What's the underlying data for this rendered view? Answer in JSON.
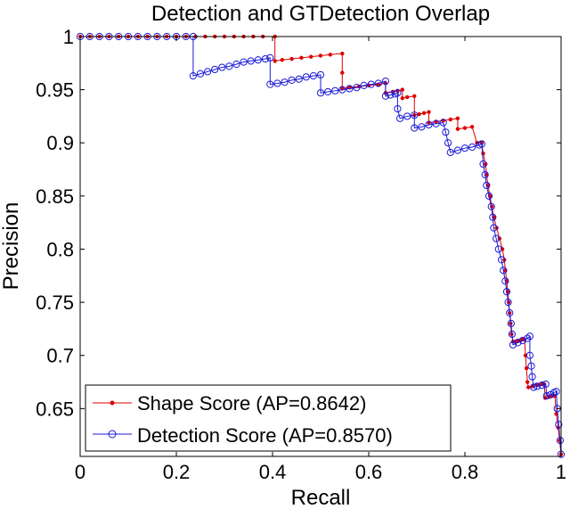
{
  "chart_data": {
    "type": "line",
    "title": "Detection and GTDetection Overlap",
    "xlabel": "Recall",
    "ylabel": "Precision",
    "xlim": [
      0,
      1
    ],
    "ylim": [
      0.605,
      1.0
    ],
    "xticks": [
      0,
      0.2,
      0.4,
      0.6,
      0.8,
      1
    ],
    "xtick_labels": [
      "0",
      "0.2",
      "0.4",
      "0.6",
      "0.8",
      "1"
    ],
    "yticks": [
      0.65,
      0.7,
      0.75,
      0.8,
      0.85,
      0.9,
      0.95,
      1
    ],
    "ytick_labels": [
      "0.65",
      "0.7",
      "0.75",
      "0.8",
      "0.85",
      "0.9",
      "0.95",
      "1"
    ],
    "grid": false,
    "legend_position": "bottom-left",
    "series": [
      {
        "name": "Shape Score (AP=0.8642)",
        "color": "#e00000",
        "marker": "dot",
        "points": [
          [
            0.0,
            1.0
          ],
          [
            0.02,
            1.0
          ],
          [
            0.04,
            1.0
          ],
          [
            0.06,
            1.0
          ],
          [
            0.08,
            1.0
          ],
          [
            0.1,
            1.0
          ],
          [
            0.12,
            1.0
          ],
          [
            0.14,
            1.0
          ],
          [
            0.16,
            1.0
          ],
          [
            0.18,
            1.0
          ],
          [
            0.2,
            1.0
          ],
          [
            0.22,
            1.0
          ],
          [
            0.24,
            1.0
          ],
          [
            0.26,
            1.0
          ],
          [
            0.28,
            1.0
          ],
          [
            0.3,
            1.0
          ],
          [
            0.32,
            1.0
          ],
          [
            0.34,
            1.0
          ],
          [
            0.36,
            1.0
          ],
          [
            0.38,
            1.0
          ],
          [
            0.405,
            1.0
          ],
          [
            0.405,
            0.977
          ],
          [
            0.42,
            0.978
          ],
          [
            0.44,
            0.979
          ],
          [
            0.46,
            0.98
          ],
          [
            0.48,
            0.981
          ],
          [
            0.5,
            0.982
          ],
          [
            0.52,
            0.983
          ],
          [
            0.545,
            0.984
          ],
          [
            0.545,
            0.966
          ],
          [
            0.545,
            0.951
          ],
          [
            0.56,
            0.952
          ],
          [
            0.58,
            0.953
          ],
          [
            0.6,
            0.954
          ],
          [
            0.62,
            0.955
          ],
          [
            0.635,
            0.956
          ],
          [
            0.635,
            0.947
          ],
          [
            0.65,
            0.948
          ],
          [
            0.66,
            0.949
          ],
          [
            0.67,
            0.95
          ],
          [
            0.67,
            0.942
          ],
          [
            0.68,
            0.943
          ],
          [
            0.695,
            0.944
          ],
          [
            0.695,
            0.926
          ],
          [
            0.705,
            0.927
          ],
          [
            0.715,
            0.928
          ],
          [
            0.725,
            0.929
          ],
          [
            0.725,
            0.919
          ],
          [
            0.74,
            0.92
          ],
          [
            0.755,
            0.921
          ],
          [
            0.77,
            0.922
          ],
          [
            0.785,
            0.923
          ],
          [
            0.785,
            0.913
          ],
          [
            0.8,
            0.914
          ],
          [
            0.815,
            0.915
          ],
          [
            0.825,
            0.9
          ],
          [
            0.835,
            0.9
          ],
          [
            0.838,
            0.89
          ],
          [
            0.843,
            0.88
          ],
          [
            0.845,
            0.87
          ],
          [
            0.848,
            0.86
          ],
          [
            0.852,
            0.85
          ],
          [
            0.856,
            0.84
          ],
          [
            0.86,
            0.83
          ],
          [
            0.866,
            0.82
          ],
          [
            0.872,
            0.81
          ],
          [
            0.878,
            0.8
          ],
          [
            0.882,
            0.79
          ],
          [
            0.884,
            0.78
          ],
          [
            0.887,
            0.77
          ],
          [
            0.889,
            0.76
          ],
          [
            0.891,
            0.75
          ],
          [
            0.893,
            0.74
          ],
          [
            0.895,
            0.73
          ],
          [
            0.897,
            0.72
          ],
          [
            0.9,
            0.713
          ],
          [
            0.905,
            0.713
          ],
          [
            0.91,
            0.714
          ],
          [
            0.915,
            0.714
          ],
          [
            0.92,
            0.715
          ],
          [
            0.924,
            0.715
          ],
          [
            0.926,
            0.7
          ],
          [
            0.928,
            0.688
          ],
          [
            0.93,
            0.675
          ],
          [
            0.932,
            0.67
          ],
          [
            0.94,
            0.671
          ],
          [
            0.95,
            0.672
          ],
          [
            0.96,
            0.673
          ],
          [
            0.965,
            0.673
          ],
          [
            0.967,
            0.66
          ],
          [
            0.975,
            0.661
          ],
          [
            0.982,
            0.662
          ],
          [
            0.987,
            0.662
          ],
          [
            0.99,
            0.645
          ],
          [
            0.994,
            0.632
          ],
          [
            0.997,
            0.62
          ],
          [
            1.0,
            0.607
          ]
        ]
      },
      {
        "name": "Detection Score (AP=0.8570)",
        "color": "#1a1ad8",
        "marker": "circle",
        "points": [
          [
            0.0,
            1.0
          ],
          [
            0.02,
            1.0
          ],
          [
            0.04,
            1.0
          ],
          [
            0.06,
            1.0
          ],
          [
            0.08,
            1.0
          ],
          [
            0.1,
            1.0
          ],
          [
            0.12,
            1.0
          ],
          [
            0.14,
            1.0
          ],
          [
            0.16,
            1.0
          ],
          [
            0.18,
            1.0
          ],
          [
            0.2,
            1.0
          ],
          [
            0.22,
            1.0
          ],
          [
            0.235,
            1.0
          ],
          [
            0.235,
            0.963
          ],
          [
            0.25,
            0.965
          ],
          [
            0.265,
            0.967
          ],
          [
            0.28,
            0.969
          ],
          [
            0.295,
            0.971
          ],
          [
            0.31,
            0.972
          ],
          [
            0.325,
            0.974
          ],
          [
            0.34,
            0.976
          ],
          [
            0.355,
            0.977
          ],
          [
            0.37,
            0.978
          ],
          [
            0.385,
            0.979
          ],
          [
            0.395,
            0.98
          ],
          [
            0.395,
            0.955
          ],
          [
            0.41,
            0.956
          ],
          [
            0.425,
            0.957
          ],
          [
            0.44,
            0.959
          ],
          [
            0.455,
            0.96
          ],
          [
            0.47,
            0.962
          ],
          [
            0.485,
            0.963
          ],
          [
            0.5,
            0.964
          ],
          [
            0.5,
            0.947
          ],
          [
            0.515,
            0.948
          ],
          [
            0.53,
            0.949
          ],
          [
            0.545,
            0.95
          ],
          [
            0.56,
            0.951
          ],
          [
            0.575,
            0.952
          ],
          [
            0.59,
            0.954
          ],
          [
            0.605,
            0.955
          ],
          [
            0.62,
            0.956
          ],
          [
            0.635,
            0.958
          ],
          [
            0.635,
            0.944
          ],
          [
            0.645,
            0.945
          ],
          [
            0.655,
            0.946
          ],
          [
            0.66,
            0.947
          ],
          [
            0.66,
            0.932
          ],
          [
            0.665,
            0.923
          ],
          [
            0.68,
            0.925
          ],
          [
            0.695,
            0.926
          ],
          [
            0.695,
            0.914
          ],
          [
            0.71,
            0.915
          ],
          [
            0.725,
            0.917
          ],
          [
            0.74,
            0.918
          ],
          [
            0.755,
            0.919
          ],
          [
            0.76,
            0.91
          ],
          [
            0.765,
            0.9
          ],
          [
            0.77,
            0.891
          ],
          [
            0.785,
            0.893
          ],
          [
            0.8,
            0.895
          ],
          [
            0.815,
            0.896
          ],
          [
            0.83,
            0.898
          ],
          [
            0.835,
            0.899
          ],
          [
            0.838,
            0.88
          ],
          [
            0.842,
            0.87
          ],
          [
            0.845,
            0.86
          ],
          [
            0.85,
            0.85
          ],
          [
            0.855,
            0.84
          ],
          [
            0.858,
            0.83
          ],
          [
            0.86,
            0.82
          ],
          [
            0.865,
            0.81
          ],
          [
            0.87,
            0.8
          ],
          [
            0.876,
            0.79
          ],
          [
            0.88,
            0.78
          ],
          [
            0.884,
            0.77
          ],
          [
            0.887,
            0.76
          ],
          [
            0.89,
            0.75
          ],
          [
            0.893,
            0.74
          ],
          [
            0.896,
            0.73
          ],
          [
            0.898,
            0.72
          ],
          [
            0.9,
            0.71
          ],
          [
            0.91,
            0.712
          ],
          [
            0.92,
            0.714
          ],
          [
            0.93,
            0.716
          ],
          [
            0.935,
            0.718
          ],
          [
            0.935,
            0.7
          ],
          [
            0.938,
            0.69
          ],
          [
            0.94,
            0.68
          ],
          [
            0.943,
            0.67
          ],
          [
            0.95,
            0.671
          ],
          [
            0.96,
            0.672
          ],
          [
            0.968,
            0.673
          ],
          [
            0.97,
            0.662
          ],
          [
            0.978,
            0.663
          ],
          [
            0.985,
            0.665
          ],
          [
            0.99,
            0.666
          ],
          [
            0.992,
            0.65
          ],
          [
            0.995,
            0.635
          ],
          [
            0.998,
            0.62
          ],
          [
            1.0,
            0.607
          ]
        ]
      }
    ]
  }
}
